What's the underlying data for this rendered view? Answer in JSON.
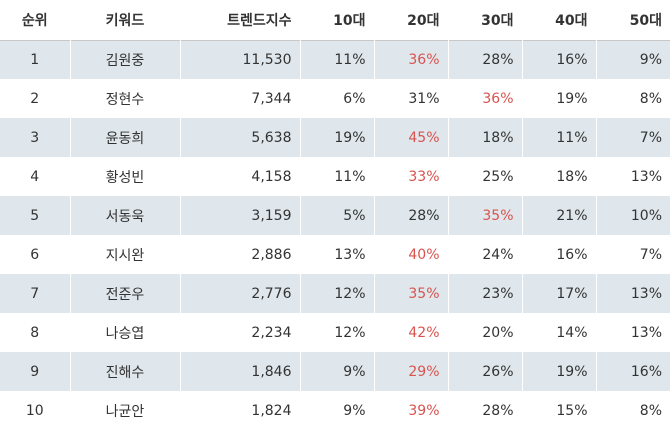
{
  "header": {
    "rank": "순위",
    "keyword": "키워드",
    "trend_index": "트렌드지수",
    "age10": "10대",
    "age20": "20대",
    "age30": "30대",
    "age40": "40대",
    "age50": "50대"
  },
  "highlight_color": "#d9534f",
  "row_shade_color": "#dfe7ec",
  "rows": [
    {
      "rank": "1",
      "keyword": "김원중",
      "trend": "11,530",
      "a10": "11%",
      "a20": "36%",
      "a30": "28%",
      "a40": "16%",
      "a50": "9%",
      "max_col": "a20"
    },
    {
      "rank": "2",
      "keyword": "정현수",
      "trend": "7,344",
      "a10": "6%",
      "a20": "31%",
      "a30": "36%",
      "a40": "19%",
      "a50": "8%",
      "max_col": "a30"
    },
    {
      "rank": "3",
      "keyword": "윤동희",
      "trend": "5,638",
      "a10": "19%",
      "a20": "45%",
      "a30": "18%",
      "a40": "11%",
      "a50": "7%",
      "max_col": "a20"
    },
    {
      "rank": "4",
      "keyword": "황성빈",
      "trend": "4,158",
      "a10": "11%",
      "a20": "33%",
      "a30": "25%",
      "a40": "18%",
      "a50": "13%",
      "max_col": "a20"
    },
    {
      "rank": "5",
      "keyword": "서동욱",
      "trend": "3,159",
      "a10": "5%",
      "a20": "28%",
      "a30": "35%",
      "a40": "21%",
      "a50": "10%",
      "max_col": "a30"
    },
    {
      "rank": "6",
      "keyword": "지시완",
      "trend": "2,886",
      "a10": "13%",
      "a20": "40%",
      "a30": "24%",
      "a40": "16%",
      "a50": "7%",
      "max_col": "a20"
    },
    {
      "rank": "7",
      "keyword": "전준우",
      "trend": "2,776",
      "a10": "12%",
      "a20": "35%",
      "a30": "23%",
      "a40": "17%",
      "a50": "13%",
      "max_col": "a20"
    },
    {
      "rank": "8",
      "keyword": "나승엽",
      "trend": "2,234",
      "a10": "12%",
      "a20": "42%",
      "a30": "20%",
      "a40": "14%",
      "a50": "13%",
      "max_col": "a20"
    },
    {
      "rank": "9",
      "keyword": "진해수",
      "trend": "1,846",
      "a10": "9%",
      "a20": "29%",
      "a30": "26%",
      "a40": "19%",
      "a50": "16%",
      "max_col": "a20"
    },
    {
      "rank": "10",
      "keyword": "나균안",
      "trend": "1,824",
      "a10": "9%",
      "a20": "39%",
      "a30": "28%",
      "a40": "15%",
      "a50": "8%",
      "max_col": "a20"
    }
  ]
}
